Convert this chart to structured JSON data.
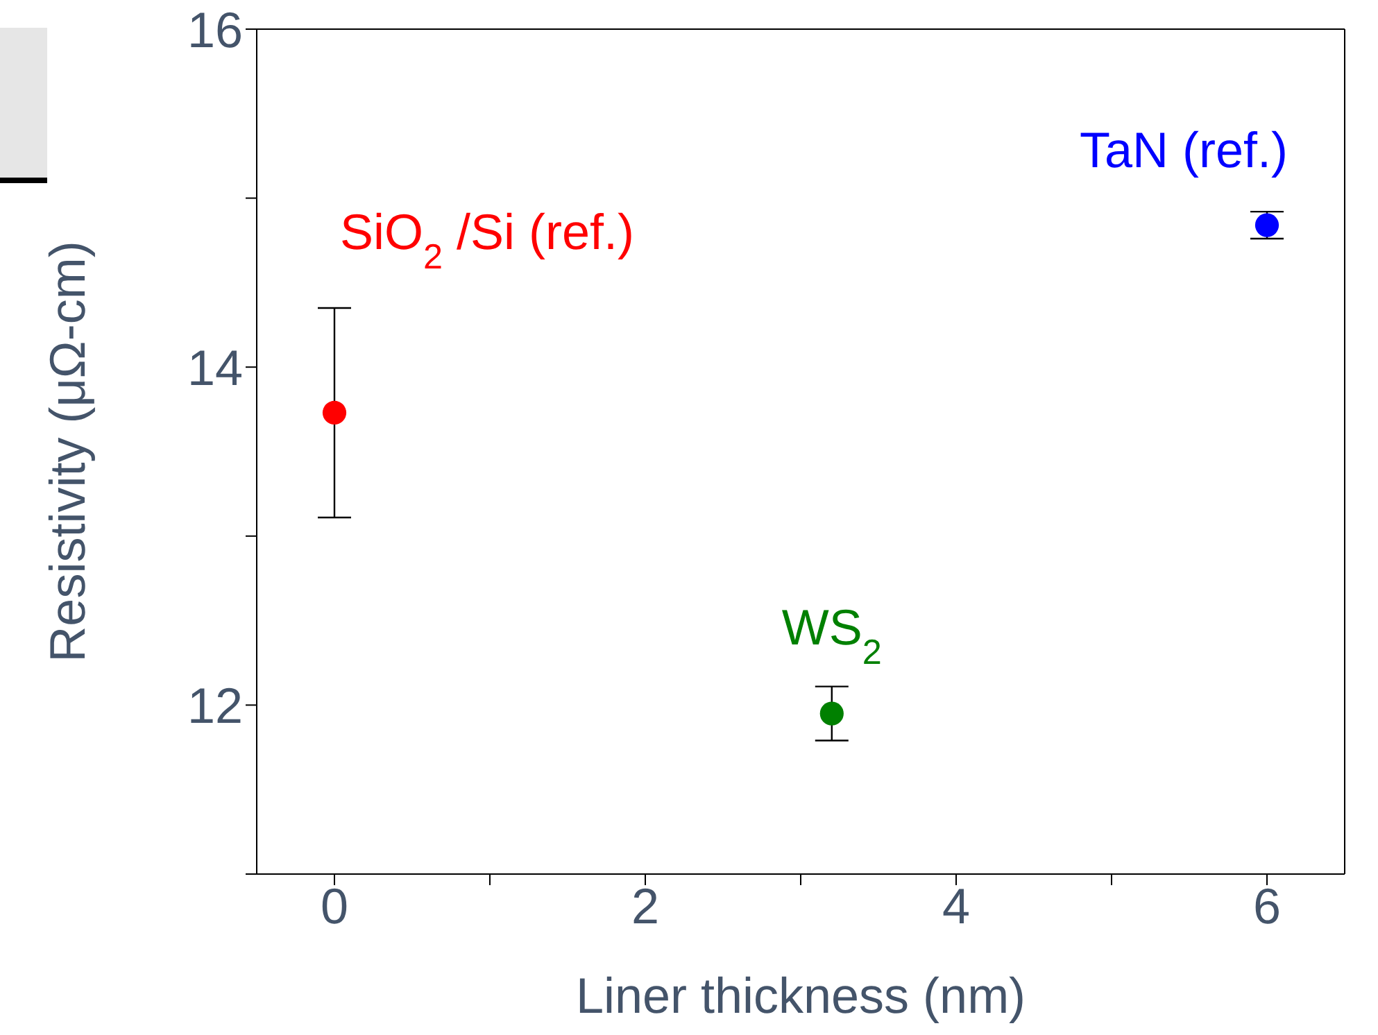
{
  "chart_data": {
    "type": "scatter",
    "xlabel": "Liner thickness (nm)",
    "ylabel": "Resistivity (μΩ-cm)",
    "xlim": [
      -0.5,
      6.5
    ],
    "ylim": [
      11,
      16
    ],
    "xticks": [
      0,
      {
        "value": 1,
        "label": null
      },
      2,
      {
        "value": 3,
        "label": null
      },
      4,
      {
        "value": 5,
        "label": null
      },
      6
    ],
    "yticks": [
      {
        "value": 11,
        "label": null
      },
      12,
      {
        "value": 13,
        "label": null
      },
      14,
      {
        "value": 15,
        "label": null
      },
      16
    ],
    "marker": "circle",
    "legend": false,
    "grid": false,
    "series": [
      {
        "name": "SiO$_{2}$ /Si (ref.)",
        "color": "#ff0000",
        "x": [
          0
        ],
        "values": [
          13.73
        ],
        "errors": [
          0.62
        ]
      },
      {
        "name": "WS$_{2}$",
        "color": "#008000",
        "x": [
          3.2
        ],
        "values": [
          11.95
        ],
        "errors": [
          0.16
        ]
      },
      {
        "name": "TaN (ref.)",
        "color": "#0000ff",
        "x": [
          6
        ],
        "values": [
          14.84
        ],
        "errors": [
          0.08
        ]
      }
    ]
  }
}
